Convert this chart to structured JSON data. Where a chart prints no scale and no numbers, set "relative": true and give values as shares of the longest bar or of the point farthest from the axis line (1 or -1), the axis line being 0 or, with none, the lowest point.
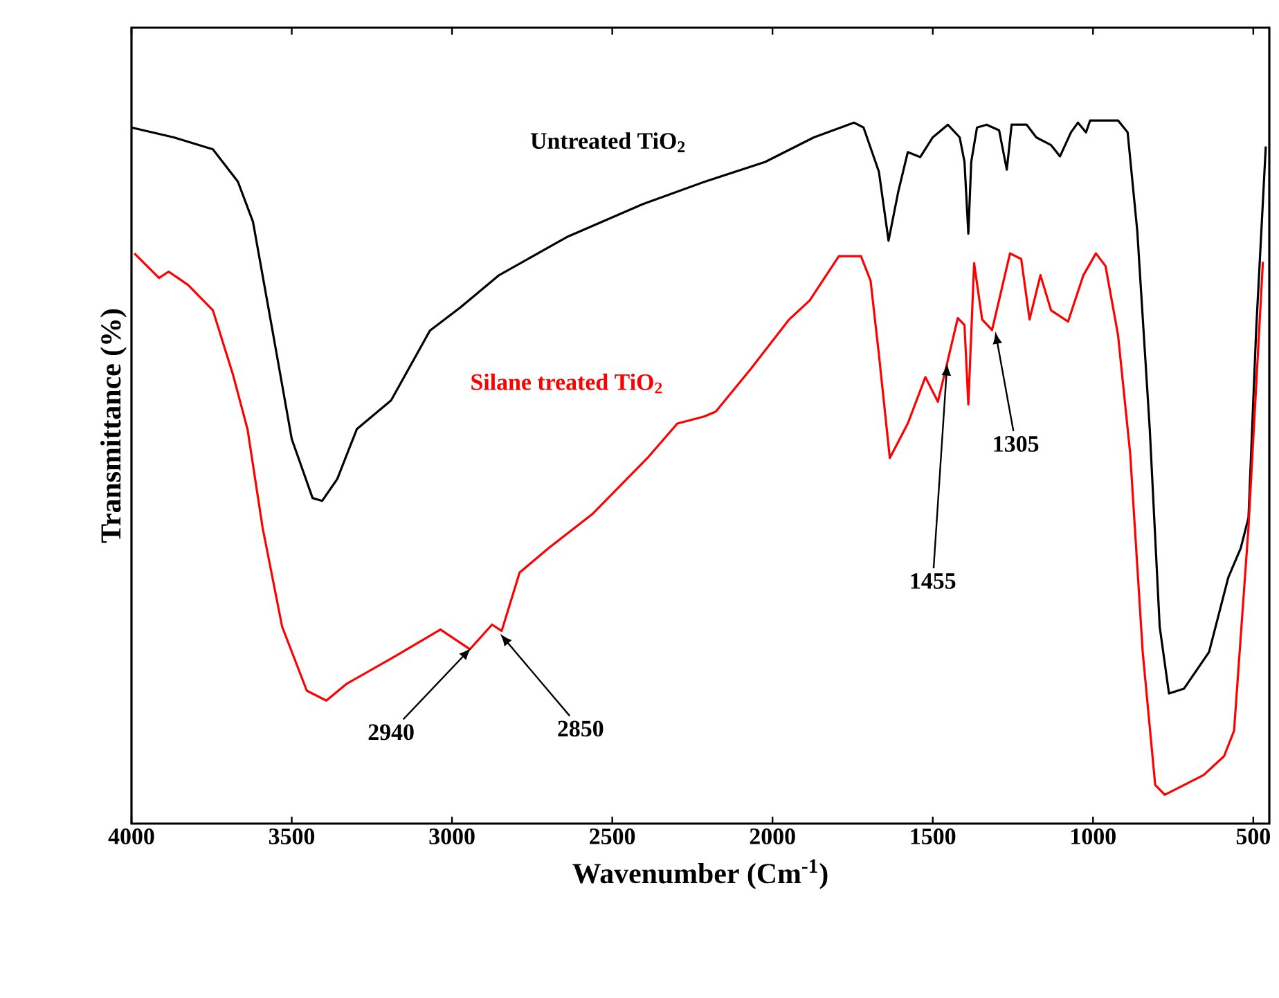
{
  "chart_data": {
    "type": "line",
    "relative": true,
    "xlabel": "Wavenumber (Cm$^{-1}$)",
    "ylabel": "Transmittance (%)",
    "xlim": [
      4000,
      450
    ],
    "xticks": [
      4000,
      3500,
      3000,
      2500,
      2000,
      1500,
      1000,
      500
    ],
    "legend": false,
    "grid": false,
    "series": [
      {
        "name": "Untreated TiO$_{2}$",
        "color": "#000000",
        "x": [
          4000,
          3868,
          3746,
          3668,
          3621,
          3560,
          3500,
          3435,
          3405,
          3358,
          3297,
          3190,
          3069,
          2974,
          2853,
          2638,
          2405,
          2211,
          2023,
          1871,
          1746,
          1716,
          1668,
          1638,
          1608,
          1578,
          1539,
          1500,
          1453,
          1416,
          1401,
          1389,
          1380,
          1362,
          1332,
          1293,
          1269,
          1254,
          1207,
          1177,
          1131,
          1103,
          1069,
          1047,
          1022,
          1009,
          922,
          892,
          862,
          823,
          792,
          763,
          716,
          638,
          578,
          539,
          515,
          491,
          461
        ],
        "values": [
          0.99,
          0.976,
          0.959,
          0.913,
          0.856,
          0.701,
          0.547,
          0.463,
          0.459,
          0.49,
          0.561,
          0.602,
          0.701,
          0.734,
          0.78,
          0.835,
          0.881,
          0.913,
          0.941,
          0.976,
          0.997,
          0.99,
          0.927,
          0.829,
          0.898,
          0.955,
          0.948,
          0.976,
          0.994,
          0.976,
          0.941,
          0.839,
          0.941,
          0.99,
          0.994,
          0.986,
          0.93,
          0.994,
          0.994,
          0.976,
          0.965,
          0.949,
          0.983,
          0.997,
          0.983,
          1,
          1,
          0.983,
          0.843,
          0.561,
          0.28,
          0.185,
          0.192,
          0.244,
          0.35,
          0.392,
          0.435,
          0.702,
          0.963
        ]
      },
      {
        "name": "Silane treated TiO$_{2}$",
        "color": "#ff0000",
        "x": [
          3991,
          3914,
          3884,
          3823,
          3746,
          3683,
          3638,
          3591,
          3530,
          3453,
          3392,
          3328,
          3177,
          3036,
          2944,
          2875,
          2845,
          2789,
          2698,
          2560,
          2390,
          2297,
          2213,
          2177,
          2069,
          1948,
          1884,
          1793,
          1724,
          1694,
          1668,
          1634,
          1578,
          1523,
          1484,
          1453,
          1422,
          1401,
          1389,
          1371,
          1346,
          1315,
          1259,
          1224,
          1198,
          1164,
          1131,
          1078,
          1030,
          991,
          961,
          922,
          884,
          845,
          806,
          776,
          655,
          591,
          560,
          515,
          470
        ],
        "values": [
          0.811,
          0.776,
          0.785,
          0.766,
          0.73,
          0.638,
          0.561,
          0.421,
          0.28,
          0.189,
          0.175,
          0.199,
          0.238,
          0.276,
          0.248,
          0.283,
          0.274,
          0.357,
          0.392,
          0.441,
          0.52,
          0.569,
          0.579,
          0.586,
          0.646,
          0.717,
          0.744,
          0.807,
          0.807,
          0.772,
          0.667,
          0.52,
          0.569,
          0.635,
          0.6,
          0.659,
          0.719,
          0.709,
          0.596,
          0.797,
          0.717,
          0.702,
          0.811,
          0.803,
          0.717,
          0.78,
          0.73,
          0.714,
          0.78,
          0.811,
          0.793,
          0.695,
          0.526,
          0.244,
          0.055,
          0.041,
          0.069,
          0.096,
          0.132,
          0.421,
          0.799
        ]
      }
    ],
    "annotations": [
      {
        "text": "2940",
        "x": 2940,
        "y": 0.25
      },
      {
        "text": "2850",
        "x": 2850,
        "y": 0.27
      },
      {
        "text": "1455",
        "x": 1455,
        "y": 0.655
      },
      {
        "text": "1305",
        "x": 1305,
        "y": 0.7
      }
    ]
  }
}
